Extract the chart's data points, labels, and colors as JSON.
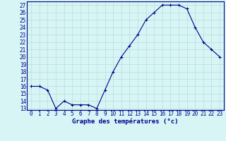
{
  "hours": [
    0,
    1,
    2,
    3,
    4,
    5,
    6,
    7,
    8,
    9,
    10,
    11,
    12,
    13,
    14,
    15,
    16,
    17,
    18,
    19,
    20,
    21,
    22,
    23
  ],
  "temps": [
    16,
    16,
    15.5,
    13,
    14,
    13.5,
    13.5,
    13.5,
    13,
    15.5,
    18,
    20,
    21.5,
    23,
    25,
    26,
    27,
    27,
    27,
    26.5,
    24,
    22,
    21,
    20
  ],
  "ylim_min": 13,
  "ylim_max": 27,
  "yticks": [
    13,
    14,
    15,
    16,
    17,
    18,
    19,
    20,
    21,
    22,
    23,
    24,
    25,
    26,
    27
  ],
  "xtick_labels": [
    "0",
    "1",
    "2",
    "3",
    "4",
    "5",
    "6",
    "7",
    "8",
    "9",
    "10",
    "11",
    "12",
    "13",
    "14",
    "15",
    "16",
    "17",
    "18",
    "19",
    "20",
    "21",
    "22",
    "23"
  ],
  "xlabel": "Graphe des températures (°c)",
  "line_color": "#00008b",
  "marker": "+",
  "bg_color": "#d8f5f5",
  "grid_color": "#b8dede",
  "label_fontsize": 6.5,
  "tick_fontsize": 5.5
}
